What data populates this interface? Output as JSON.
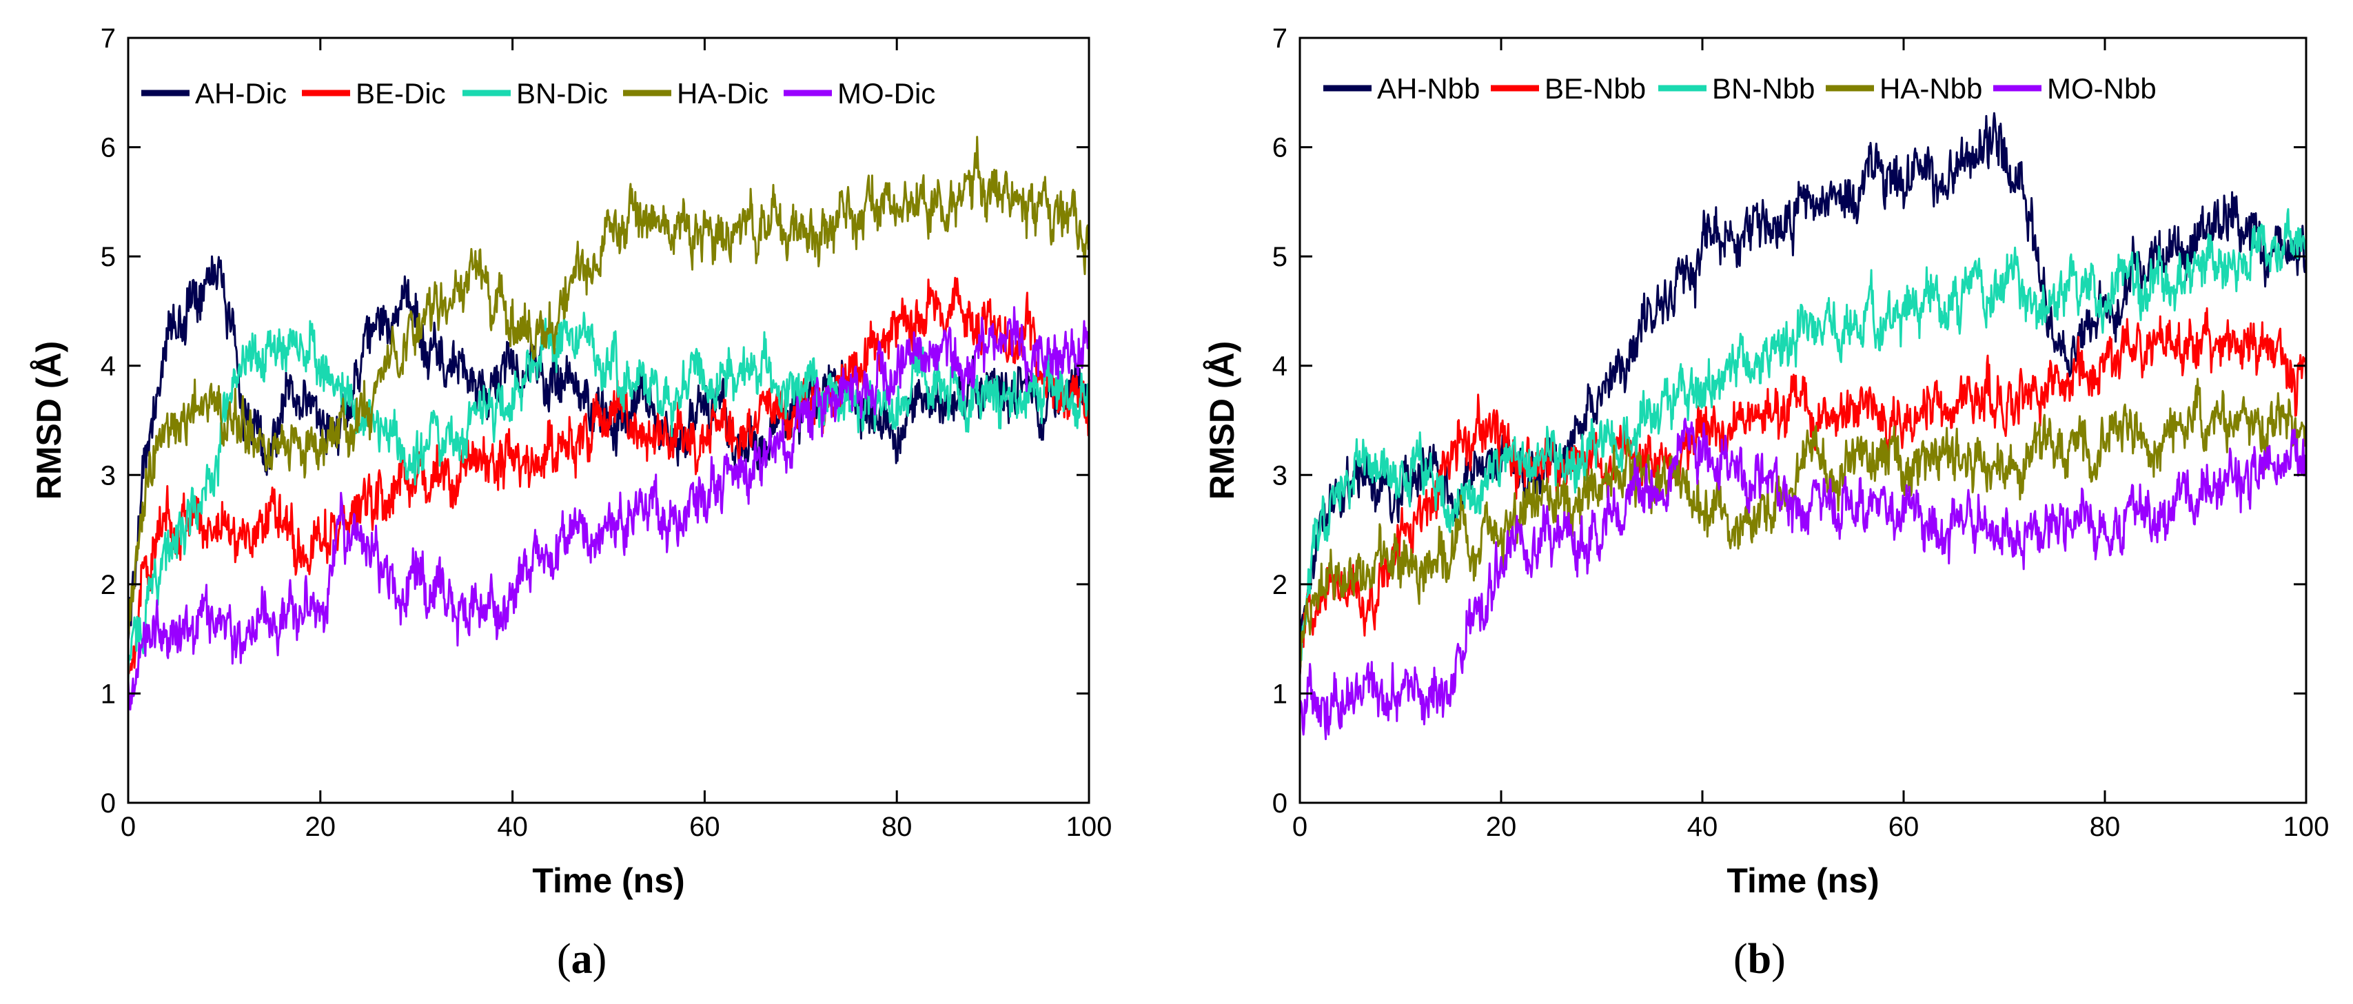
{
  "chart_data": [
    {
      "type": "line",
      "panel_label": "a",
      "title": "",
      "xlabel": "Time (ns)",
      "ylabel": "RMSD (Å)",
      "xlim": [
        0,
        100
      ],
      "ylim": [
        0,
        7
      ],
      "xticks": [
        0,
        20,
        40,
        60,
        80,
        100
      ],
      "yticks": [
        0,
        1,
        2,
        3,
        4,
        5,
        6,
        7
      ],
      "grid": false,
      "legend_position": "top",
      "x": [
        0,
        1,
        2,
        3,
        4,
        5,
        6,
        7,
        8,
        9,
        10,
        11,
        12,
        13,
        14,
        15,
        16,
        17,
        18,
        19,
        20,
        22,
        24,
        26,
        28,
        30,
        32,
        34,
        36,
        38,
        40,
        42,
        44,
        46,
        48,
        50,
        52,
        54,
        56,
        58,
        60,
        62,
        64,
        66,
        68,
        70,
        72,
        74,
        76,
        78,
        80,
        82,
        84,
        86,
        88,
        90,
        92,
        94,
        96,
        98,
        100
      ],
      "series": [
        {
          "name": "AH-Dic",
          "color": "#000050",
          "values": [
            1.5,
            2.5,
            3.3,
            3.8,
            4.2,
            4.4,
            4.5,
            4.6,
            4.9,
            5.1,
            4.6,
            4.3,
            3.6,
            3.4,
            3.2,
            3.4,
            3.6,
            3.8,
            3.7,
            3.6,
            3.5,
            3.5,
            3.9,
            4.3,
            4.6,
            4.4,
            4.1,
            4.0,
            3.8,
            3.8,
            3.9,
            4.0,
            3.8,
            3.8,
            3.6,
            3.6,
            3.6,
            3.7,
            3.5,
            3.4,
            3.5,
            3.5,
            3.3,
            3.3,
            3.4,
            3.6,
            3.8,
            3.7,
            3.5,
            3.4,
            3.4,
            3.6,
            3.6,
            3.7,
            3.8,
            3.9,
            3.7,
            3.7,
            3.7,
            3.8,
            3.8
          ]
        },
        {
          "name": "BE-Dic",
          "color": "#ff0000",
          "values": [
            1.2,
            1.8,
            2.2,
            2.4,
            2.5,
            2.6,
            2.7,
            2.6,
            2.5,
            2.6,
            2.6,
            2.5,
            2.5,
            2.4,
            2.6,
            2.7,
            2.6,
            2.5,
            2.4,
            2.4,
            2.4,
            2.5,
            2.6,
            2.8,
            2.9,
            3.0,
            2.9,
            3.0,
            3.1,
            3.1,
            3.2,
            3.1,
            3.2,
            3.3,
            3.4,
            3.5,
            3.6,
            3.3,
            3.4,
            3.3,
            3.3,
            3.4,
            3.3,
            3.5,
            3.5,
            3.6,
            3.7,
            3.8,
            3.9,
            4.2,
            4.4,
            4.5,
            4.6,
            4.5,
            4.4,
            4.4,
            4.3,
            4.2,
            4.0,
            3.8,
            3.6
          ]
        },
        {
          "name": "BN-Dic",
          "color": "#1ad9b0",
          "values": [
            1.2,
            1.6,
            1.9,
            2.1,
            2.3,
            2.4,
            2.5,
            2.6,
            2.8,
            3.0,
            3.4,
            3.7,
            3.9,
            4.0,
            4.1,
            4.2,
            4.2,
            4.3,
            4.2,
            4.2,
            4.1,
            3.8,
            3.6,
            3.4,
            3.3,
            3.2,
            3.3,
            3.4,
            3.5,
            3.6,
            3.8,
            4.0,
            4.2,
            4.3,
            4.2,
            4.0,
            3.9,
            3.8,
            3.7,
            3.8,
            3.9,
            3.9,
            4.0,
            4.0,
            3.8,
            3.8,
            3.7,
            3.7,
            3.6,
            3.7,
            3.7,
            3.7,
            3.8,
            3.8,
            3.7,
            3.7,
            3.8,
            3.7,
            3.7,
            3.7,
            3.8
          ]
        },
        {
          "name": "HA-Dic",
          "color": "#808000",
          "values": [
            1.5,
            2.4,
            2.9,
            3.2,
            3.4,
            3.5,
            3.6,
            3.7,
            3.8,
            3.7,
            3.6,
            3.5,
            3.4,
            3.3,
            3.3,
            3.2,
            3.2,
            3.2,
            3.2,
            3.2,
            3.3,
            3.4,
            3.6,
            3.8,
            4.0,
            4.3,
            4.5,
            4.7,
            4.9,
            4.6,
            4.4,
            4.3,
            4.4,
            4.6,
            4.9,
            5.1,
            5.6,
            5.2,
            5.3,
            5.3,
            5.2,
            5.2,
            5.3,
            5.3,
            5.3,
            5.2,
            5.2,
            5.3,
            5.4,
            5.4,
            5.4,
            5.3,
            5.4,
            5.6,
            5.7,
            5.6,
            5.5,
            5.4,
            5.3,
            5.3,
            5.3
          ]
        },
        {
          "name": "MO-Dic",
          "color": "#9900ff",
          "values": [
            1.0,
            1.4,
            1.6,
            1.6,
            1.5,
            1.5,
            1.6,
            1.6,
            1.7,
            1.6,
            1.5,
            1.5,
            1.6,
            1.6,
            1.7,
            1.6,
            1.6,
            1.6,
            1.7,
            1.8,
            1.8,
            2.5,
            2.4,
            2.2,
            2.0,
            2.0,
            1.9,
            1.9,
            1.8,
            1.8,
            2.0,
            2.1,
            2.2,
            2.3,
            2.4,
            2.5,
            2.6,
            2.7,
            2.6,
            2.8,
            2.9,
            3.0,
            3.0,
            3.1,
            3.3,
            3.5,
            3.7,
            3.8,
            3.9,
            4.0,
            4.1,
            4.2,
            4.2,
            4.1,
            4.1,
            4.2,
            4.2,
            4.1,
            4.1,
            4.2,
            4.2
          ]
        }
      ]
    },
    {
      "type": "line",
      "panel_label": "b",
      "title": "",
      "xlabel": "Time (ns)",
      "ylabel": "RMSD (Å)",
      "xlim": [
        0,
        100
      ],
      "ylim": [
        0,
        7
      ],
      "xticks": [
        0,
        20,
        40,
        60,
        80,
        100
      ],
      "yticks": [
        0,
        1,
        2,
        3,
        4,
        5,
        6,
        7
      ],
      "grid": false,
      "legend_position": "top",
      "x": [
        0,
        1,
        2,
        3,
        4,
        5,
        6,
        7,
        8,
        9,
        10,
        11,
        12,
        13,
        14,
        15,
        16,
        17,
        18,
        19,
        20,
        22,
        24,
        26,
        28,
        30,
        32,
        34,
        36,
        38,
        40,
        42,
        44,
        46,
        48,
        50,
        52,
        54,
        56,
        58,
        60,
        62,
        64,
        66,
        68,
        70,
        72,
        74,
        76,
        78,
        80,
        82,
        84,
        86,
        88,
        90,
        92,
        94,
        96,
        98,
        100
      ],
      "series": [
        {
          "name": "AH-Nbb",
          "color": "#000050",
          "values": [
            1.4,
            2.2,
            2.6,
            2.8,
            2.9,
            3.0,
            3.0,
            2.9,
            2.8,
            2.8,
            2.8,
            2.9,
            3.0,
            3.0,
            2.9,
            2.8,
            2.8,
            2.9,
            3.0,
            3.1,
            3.1,
            3.0,
            3.1,
            3.2,
            3.4,
            3.7,
            4.1,
            4.2,
            4.4,
            4.9,
            5.1,
            5.1,
            5.2,
            5.3,
            5.3,
            5.4,
            5.5,
            5.5,
            5.6,
            5.7,
            5.7,
            5.8,
            5.8,
            5.9,
            5.9,
            5.9,
            5.4,
            4.6,
            4.0,
            4.2,
            4.5,
            4.7,
            4.9,
            5.0,
            5.1,
            5.3,
            5.4,
            5.3,
            5.1,
            5.0,
            5.0
          ]
        },
        {
          "name": "BE-Nbb",
          "color": "#ff0000",
          "values": [
            1.3,
            1.8,
            2.1,
            2.2,
            2.1,
            2.0,
            1.9,
            1.9,
            2.0,
            2.2,
            2.4,
            2.5,
            2.6,
            2.7,
            2.9,
            3.1,
            3.2,
            3.3,
            3.4,
            3.4,
            3.3,
            3.1,
            3.0,
            3.0,
            3.1,
            3.1,
            3.2,
            3.2,
            3.3,
            3.3,
            3.3,
            3.4,
            3.4,
            3.5,
            3.5,
            3.6,
            3.6,
            3.6,
            3.6,
            3.5,
            3.5,
            3.6,
            3.6,
            3.6,
            3.7,
            3.7,
            3.8,
            3.8,
            3.9,
            4.0,
            4.0,
            4.1,
            4.1,
            4.2,
            4.2,
            4.2,
            4.2,
            4.1,
            4.1,
            4.0,
            3.9
          ]
        },
        {
          "name": "BN-Nbb",
          "color": "#1ad9b0",
          "values": [
            1.5,
            2.2,
            2.5,
            2.7,
            2.8,
            2.9,
            3.0,
            3.0,
            3.1,
            3.0,
            3.0,
            3.1,
            3.0,
            2.9,
            2.8,
            2.7,
            2.8,
            2.9,
            2.9,
            2.9,
            3.0,
            3.0,
            3.1,
            3.2,
            3.2,
            3.3,
            3.4,
            3.5,
            3.6,
            3.7,
            3.8,
            3.9,
            4.0,
            4.1,
            4.2,
            4.3,
            4.3,
            4.4,
            4.5,
            4.5,
            4.5,
            4.6,
            4.6,
            4.7,
            4.7,
            4.7,
            4.8,
            4.7,
            4.6,
            4.6,
            4.7,
            4.8,
            4.8,
            4.8,
            4.9,
            4.9,
            4.9,
            5.0,
            5.0,
            5.0,
            5.0
          ]
        },
        {
          "name": "HA-Nbb",
          "color": "#808000",
          "values": [
            1.4,
            1.8,
            2.0,
            2.1,
            2.1,
            2.0,
            2.0,
            2.0,
            2.1,
            2.1,
            2.1,
            2.2,
            2.2,
            2.3,
            2.3,
            2.3,
            2.4,
            2.4,
            2.4,
            2.5,
            2.5,
            2.6,
            2.7,
            2.8,
            2.8,
            2.9,
            2.9,
            3.0,
            3.0,
            2.8,
            2.7,
            2.7,
            2.6,
            2.7,
            2.8,
            2.9,
            3.0,
            3.0,
            3.1,
            3.1,
            3.1,
            3.1,
            3.2,
            3.1,
            3.1,
            3.1,
            3.2,
            3.3,
            3.3,
            3.3,
            3.3,
            3.4,
            3.4,
            3.4,
            3.4,
            3.4,
            3.5,
            3.5,
            3.4,
            3.4,
            3.4
          ]
        },
        {
          "name": "MO-Nbb",
          "color": "#9900ff",
          "values": [
            0.9,
            1.0,
            1.0,
            1.0,
            1.0,
            1.0,
            1.0,
            1.0,
            1.0,
            1.0,
            1.0,
            1.0,
            1.0,
            1.0,
            1.0,
            1.1,
            1.3,
            1.6,
            1.8,
            2.0,
            2.1,
            2.2,
            2.3,
            2.4,
            2.5,
            2.6,
            2.7,
            2.8,
            3.0,
            3.2,
            3.3,
            3.2,
            3.1,
            3.0,
            2.9,
            2.8,
            2.8,
            2.7,
            2.7,
            2.7,
            2.6,
            2.6,
            2.6,
            2.6,
            2.5,
            2.5,
            2.5,
            2.5,
            2.5,
            2.5,
            2.5,
            2.6,
            2.6,
            2.7,
            2.8,
            2.9,
            3.0,
            3.0,
            3.1,
            3.1,
            3.0
          ]
        }
      ]
    }
  ]
}
